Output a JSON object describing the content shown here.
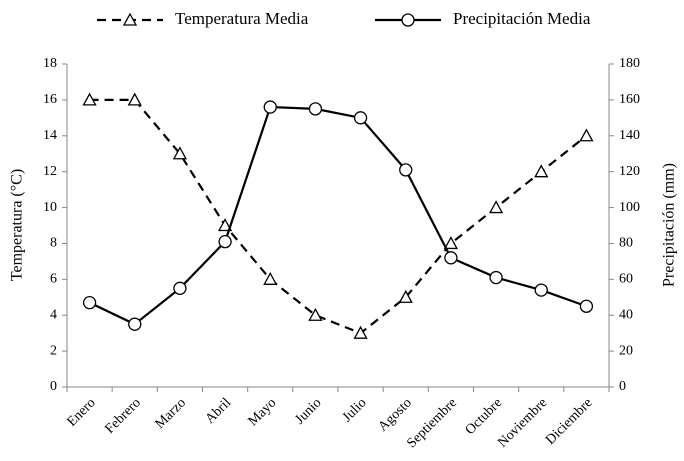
{
  "chart_data": {
    "type": "line",
    "categories": [
      "Enero",
      "Febrero",
      "Marzo",
      "Abril",
      "Mayo",
      "Junio",
      "Julio",
      "Agosto",
      "Septiembre",
      "Octubre",
      "Noviembre",
      "Diciembre"
    ],
    "series": [
      {
        "name": "Temperatura Media",
        "color": "#000000",
        "line_style": "dashed",
        "marker": "triangle",
        "axis": "y",
        "values": [
          16,
          16,
          13,
          9,
          6,
          4,
          3,
          5,
          8,
          10,
          12,
          14
        ]
      },
      {
        "name": "Precipitación Media",
        "color": "#000000",
        "line_style": "solid",
        "marker": "circle",
        "axis": "y2",
        "values": [
          47,
          35,
          55,
          81,
          156,
          155,
          150,
          121,
          72,
          61,
          54,
          45
        ]
      }
    ],
    "ylabel": "Temperatura (°C)",
    "y2label": "Precipitación (mm)",
    "ylim": [
      0,
      18
    ],
    "yticks": [
      0,
      2,
      4,
      6,
      8,
      10,
      12,
      14,
      16,
      18
    ],
    "y2lim": [
      0,
      180
    ],
    "y2ticks": [
      0,
      20,
      40,
      60,
      80,
      100,
      120,
      140,
      160,
      180
    ],
    "grid": false,
    "legend": "top"
  }
}
